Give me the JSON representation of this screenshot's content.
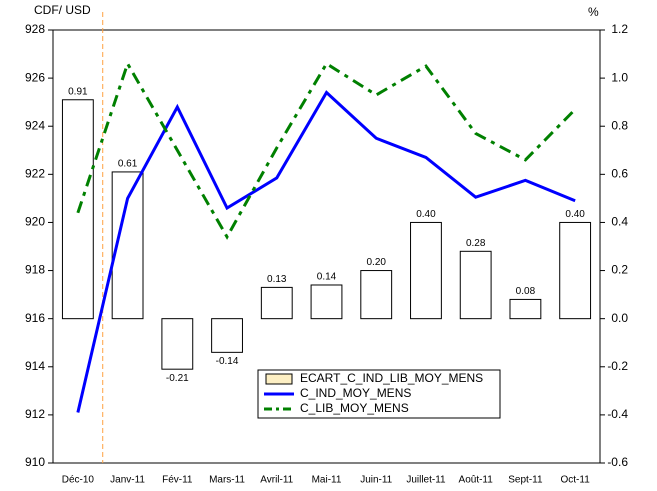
{
  "chart_data": {
    "type": "combo",
    "y_label": "CDF/ USD",
    "y2_label": "%",
    "categories": [
      "Déc-10",
      "Janv-11",
      "Fév-11",
      "Mars-11",
      "Avril-11",
      "Mai-11",
      "Juin-11",
      "Juillet-11",
      "Août-11",
      "Sept-11",
      "Oct-11"
    ],
    "ylim": [
      910,
      928
    ],
    "yticks": [
      910,
      912,
      914,
      916,
      918,
      920,
      922,
      924,
      926,
      928
    ],
    "y2lim": [
      -0.6,
      1.2
    ],
    "y2ticks": [
      -0.6,
      -0.4,
      -0.2,
      {
        "value": 0,
        "label": "0.0"
      },
      0.2,
      0.4,
      0.6,
      0.8,
      {
        "value": 1,
        "label": "1.0"
      },
      1.2
    ],
    "legend": "bottom-center",
    "series": [
      {
        "name": "ECART_C_IND_LIB_MOY_MENS",
        "type": "bar",
        "axis": "y2",
        "color": "#ffffff",
        "legend_color": "#fdefc3",
        "values": [
          0.91,
          0.61,
          -0.21,
          -0.14,
          0.13,
          0.14,
          0.2,
          0.4,
          0.28,
          0.08,
          0.4
        ],
        "value_labels": [
          "0.91",
          "0.61",
          "-0.21",
          "-0.14",
          "0.13",
          "0.14",
          "0.20",
          "0.40",
          "0.28",
          "0.08",
          "0.40"
        ]
      },
      {
        "name": "C_IND_MOY_MENS",
        "type": "line",
        "axis": "y",
        "color": "#0000ff",
        "dash": "none",
        "values": [
          912.1,
          921.0,
          924.8,
          920.6,
          921.85,
          925.4,
          923.5,
          922.7,
          921.05,
          921.75,
          920.9
        ]
      },
      {
        "name": "C_LIB_MOY_MENS",
        "type": "line",
        "axis": "y2",
        "color": "#008000",
        "dash": "12 6 4 6",
        "values": [
          0.44,
          1.06,
          0.7,
          0.34,
          0.71,
          1.06,
          0.93,
          1.05,
          0.77,
          0.66,
          0.87
        ]
      }
    ]
  }
}
